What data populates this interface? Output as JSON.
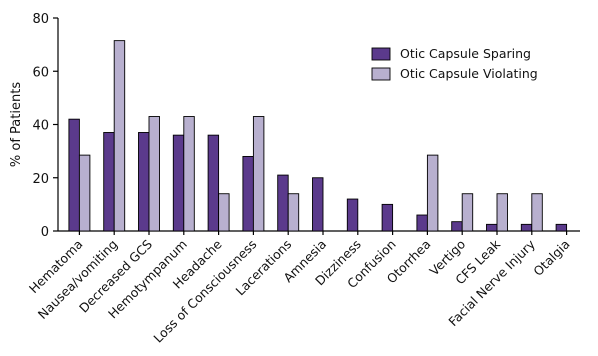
{
  "chart_data": {
    "type": "bar",
    "title": "",
    "xlabel": "",
    "ylabel": "% of Patients",
    "ylim": [
      0,
      80
    ],
    "yticks": [
      0,
      20,
      40,
      60,
      80
    ],
    "grid": false,
    "legend_position": "top-right",
    "categories": [
      "Hematoma",
      "Nausea/vomiting",
      "Decreased GCS",
      "Hemotympanum",
      "Headache",
      "Loss of Consciousness",
      "Lacerations",
      "Amnesia",
      "Dizziness",
      "Confusion",
      "Otorrhea",
      "Vertigo",
      "CFS Leak",
      "Facial Nerve Injury",
      "Otalgia"
    ],
    "series": [
      {
        "name": "Otic Capsule Sparing",
        "color": "#5b3a8c",
        "values": [
          42,
          37,
          37,
          36,
          36,
          28,
          21,
          20,
          12,
          10,
          6,
          3.5,
          2.5,
          2.5,
          2.5
        ]
      },
      {
        "name": "Otic Capsule Violating",
        "color": "#b8b0cf",
        "values": [
          28.5,
          71.5,
          43,
          43,
          14,
          43,
          14,
          0,
          0,
          0,
          28.5,
          14,
          14,
          14,
          0
        ]
      }
    ]
  }
}
